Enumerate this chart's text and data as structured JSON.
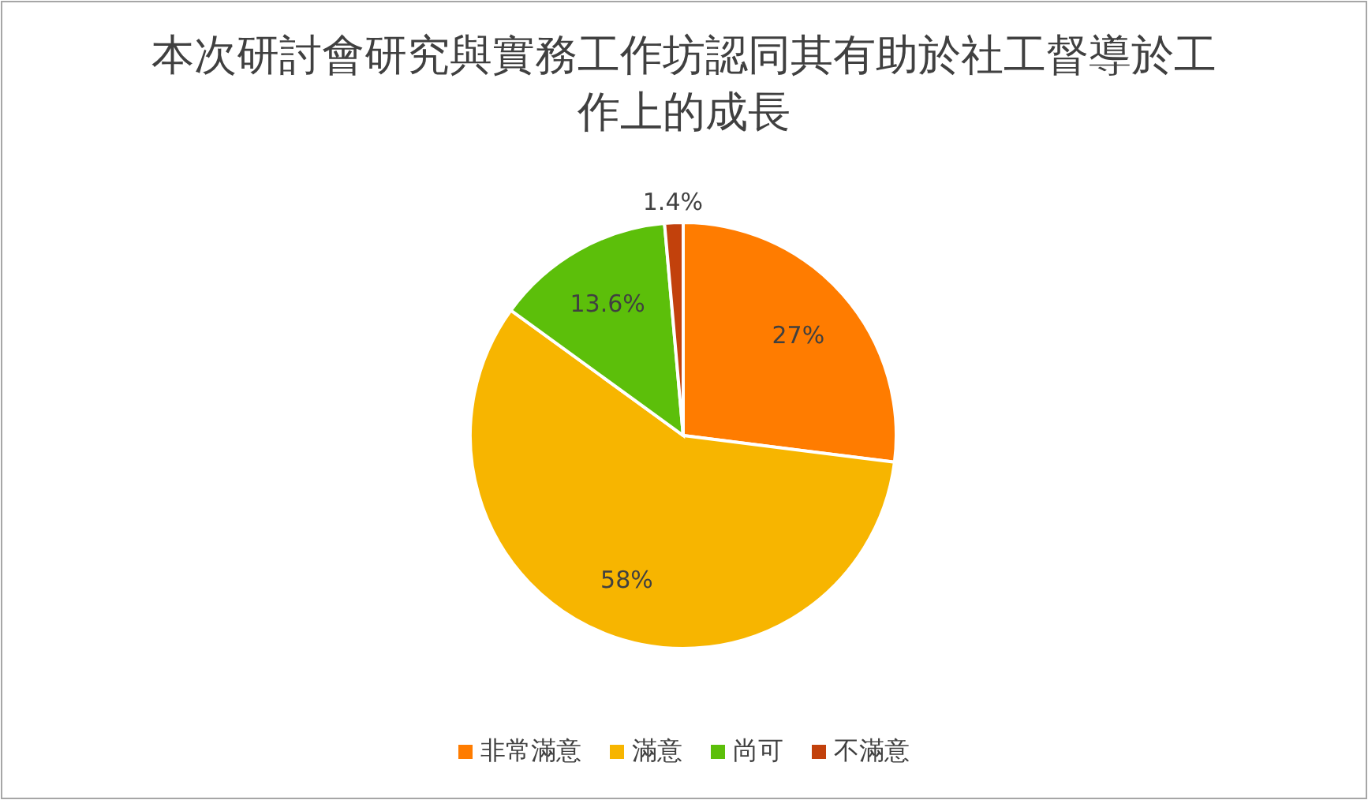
{
  "chart_data": {
    "type": "pie",
    "title": "本次研討會研究與實務工作坊認同其有助於社工督導於工作上的成長",
    "categories": [
      "非常滿意",
      "滿意",
      "尚可",
      "不滿意"
    ],
    "values": [
      27,
      58,
      13.6,
      1.4
    ],
    "value_labels": [
      "27%",
      "58%",
      "13.6%",
      "1.4%"
    ],
    "colors": [
      "#ff7c00",
      "#f7b500",
      "#5cbf0a",
      "#c2410c"
    ],
    "legend": "bottom"
  }
}
